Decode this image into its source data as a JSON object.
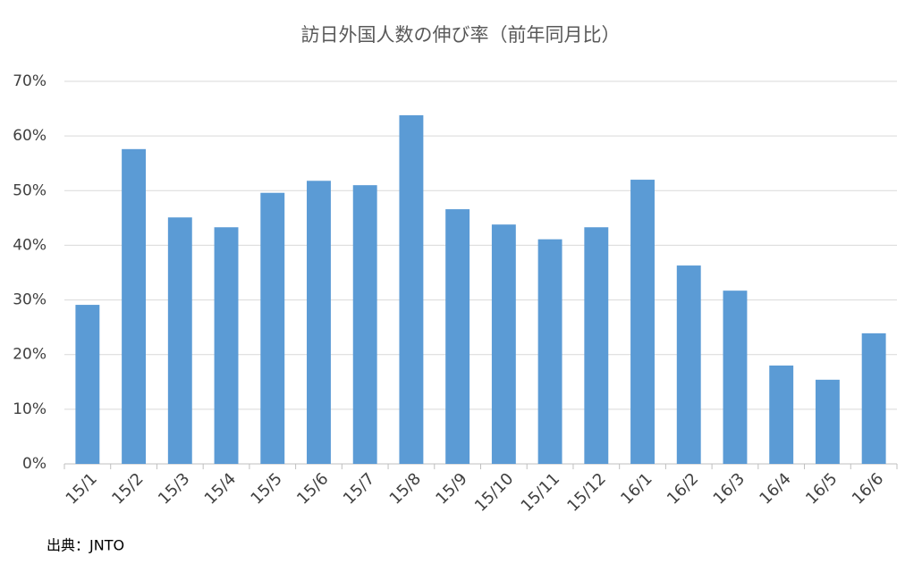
{
  "chart_data": {
    "type": "bar",
    "title": "訪日外国人数の伸び率（前年同月比）",
    "categories": [
      "15/1",
      "15/2",
      "15/3",
      "15/4",
      "15/5",
      "15/6",
      "15/7",
      "15/8",
      "15/9",
      "15/10",
      "15/11",
      "15/12",
      "16/1",
      "16/2",
      "16/3",
      "16/4",
      "16/5",
      "16/6"
    ],
    "values": [
      29.1,
      57.6,
      45.1,
      43.3,
      49.6,
      51.8,
      51.0,
      63.8,
      46.6,
      43.8,
      41.1,
      43.3,
      52.0,
      36.3,
      31.7,
      18.0,
      15.4,
      23.9
    ],
    "color": "#5b9bd5",
    "ylim": [
      0,
      70
    ],
    "yticks": [
      {
        "value": 0,
        "label": "0%"
      },
      {
        "value": 10,
        "label": "10%"
      },
      {
        "value": 20,
        "label": "20%"
      },
      {
        "value": 30,
        "label": "30%"
      },
      {
        "value": 40,
        "label": "40%"
      },
      {
        "value": 50,
        "label": "50%"
      },
      {
        "value": 60,
        "label": "60%"
      },
      {
        "value": 70,
        "label": "70%"
      }
    ],
    "grid": true,
    "source": "出典：JNTO"
  }
}
